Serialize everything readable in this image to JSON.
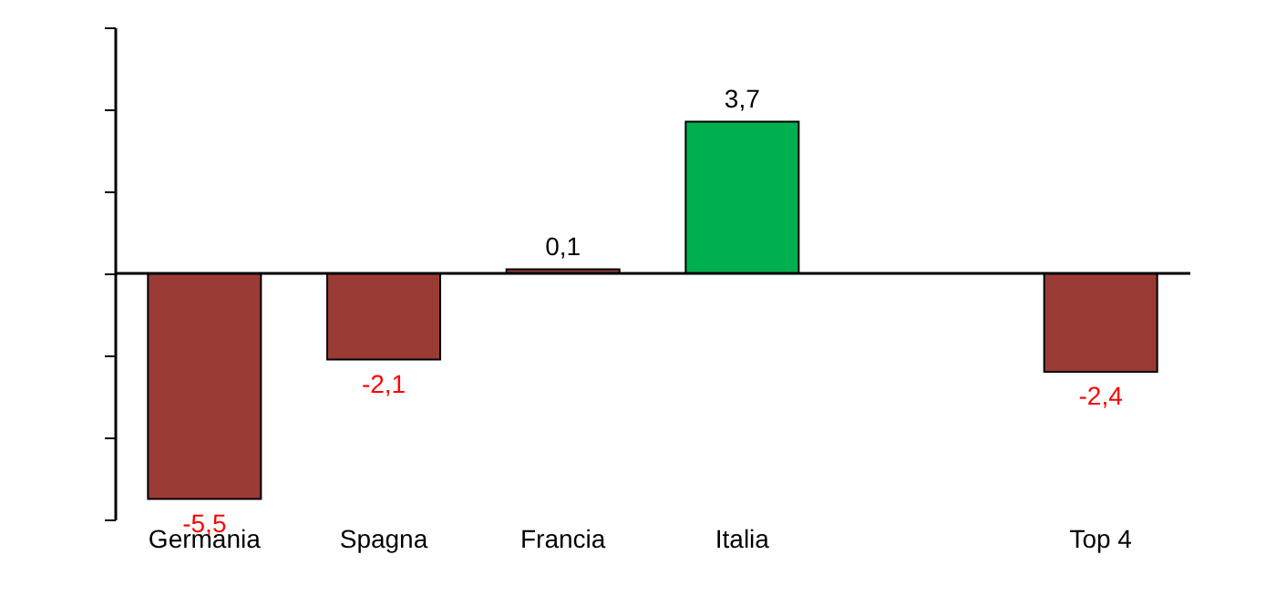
{
  "chart_data": {
    "type": "bar",
    "categories": [
      "Germania",
      "Spagna",
      "Francia",
      "Italia",
      null,
      "Top 4"
    ],
    "values": [
      -5.5,
      -2.1,
      0.1,
      3.7,
      null,
      -2.4
    ],
    "colors": [
      "#9b3b36",
      "#9b3b36",
      "#9b3b36",
      "#00b050",
      "#9b3b36",
      "#9b3b36"
    ],
    "value_labels": [
      "-5,5",
      "-2,1",
      "0,1",
      "3,7",
      null,
      "-2,4"
    ],
    "ylim": [
      -6,
      6
    ],
    "yticks": [
      {
        "value": -6,
        "label": null
      },
      {
        "value": -4,
        "label": null
      },
      {
        "value": -2,
        "label": null
      },
      {
        "value": 0,
        "label": null
      },
      {
        "value": 2,
        "label": null
      },
      {
        "value": 4,
        "label": null
      },
      {
        "value": 6,
        "label": null
      }
    ],
    "tick_labels": "x",
    "grid": false
  }
}
